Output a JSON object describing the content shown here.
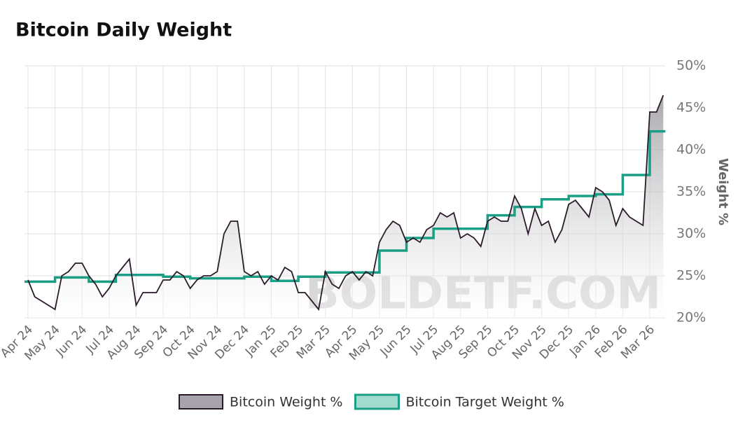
{
  "chart_data": {
    "type": "line",
    "title": "Bitcoin Daily Weight",
    "y_label": "Weight %",
    "watermark": "BOLDETF.COM",
    "categories": [
      "Apr 24",
      null,
      null,
      null,
      "May 24",
      null,
      null,
      null,
      "Jun 24",
      null,
      null,
      null,
      "Jul 24",
      null,
      null,
      null,
      "Aug 24",
      null,
      null,
      null,
      "Sep 24",
      null,
      null,
      null,
      "Oct 24",
      null,
      null,
      null,
      "Nov 24",
      null,
      null,
      null,
      "Dec 24",
      null,
      null,
      null,
      "Jan 25",
      null,
      null,
      null,
      "Feb 25",
      null,
      null,
      null,
      "Mar 25",
      null,
      null,
      null,
      "Apr 25",
      null,
      null,
      null,
      "May 25",
      null,
      null,
      null,
      "Jun 25",
      null,
      null,
      null,
      "Jul 25",
      null,
      null,
      null,
      "Aug 25",
      null,
      null,
      null,
      "Sep 25",
      null,
      null,
      null,
      "Oct 25",
      null,
      null,
      null,
      "Nov 25",
      null,
      null,
      null,
      "Dec 25",
      null,
      null,
      null,
      "Jan 26",
      null,
      null,
      null,
      "Feb 26",
      null,
      null,
      null,
      "Mar 26",
      null,
      null
    ],
    "series": [
      {
        "name": "Bitcoin Weight %",
        "color": "#2b1a2b",
        "fill": "#a8a4ab",
        "values": [
          24.5,
          22.5,
          22,
          21.5,
          21,
          25,
          25.5,
          26.5,
          26.5,
          25,
          24,
          22.5,
          23.5,
          25,
          26,
          27,
          21.5,
          23,
          23,
          23,
          24.5,
          24.5,
          25.5,
          25,
          23.5,
          24.5,
          25,
          25,
          25.5,
          30,
          31.5,
          31.5,
          25.5,
          25,
          25.5,
          24,
          25,
          24.5,
          26,
          25.5,
          23,
          23,
          22,
          21,
          25.5,
          24,
          23.5,
          25,
          25.5,
          24.5,
          25.5,
          25,
          29,
          30.5,
          31.5,
          31,
          29,
          29.5,
          29,
          30.5,
          31,
          32.5,
          32,
          32.5,
          29.5,
          30,
          29.5,
          28.5,
          31.5,
          32,
          31.5,
          31.5,
          34.5,
          33,
          30,
          33,
          31,
          31.5,
          29,
          30.5,
          33.5,
          34,
          33,
          32,
          35.5,
          35,
          34,
          31,
          33,
          32,
          31.5,
          31,
          44.5,
          44.5,
          46.5
        ]
      },
      {
        "name": "Bitcoin Target Weight %",
        "color": "#1a9e85",
        "fill": "#a3dccf",
        "values": [
          24.3,
          24.3,
          24.3,
          24.3,
          24.8,
          24.8,
          24.8,
          24.8,
          24.8,
          24.3,
          24.3,
          24.3,
          24.3,
          25.1,
          25.1,
          25.1,
          25.1,
          25.1,
          25.1,
          25.1,
          24.9,
          24.9,
          24.9,
          24.9,
          24.7,
          24.7,
          24.7,
          24.7,
          24.7,
          24.7,
          24.7,
          24.7,
          24.9,
          24.9,
          24.9,
          24.9,
          24.4,
          24.4,
          24.4,
          24.4,
          24.9,
          24.9,
          24.9,
          24.9,
          25.4,
          25.4,
          25.4,
          25.4,
          25.4,
          25.4,
          25.4,
          25.4,
          28,
          28,
          28,
          28,
          29.5,
          29.5,
          29.5,
          29.5,
          30.6,
          30.6,
          30.6,
          30.6,
          30.6,
          30.6,
          30.6,
          30.6,
          32.2,
          32.2,
          32.2,
          32.2,
          33.2,
          33.2,
          33.2,
          33.2,
          34.1,
          34.1,
          34.1,
          34.1,
          34.5,
          34.5,
          34.5,
          34.5,
          34.7,
          34.7,
          34.7,
          34.7,
          37,
          37,
          37,
          37,
          42.2,
          42.2,
          42.2
        ]
      }
    ],
    "ylim": [
      20,
      50
    ],
    "yticks": [
      {
        "value": 20,
        "label": "20%"
      },
      {
        "value": 25,
        "label": "25%"
      },
      {
        "value": 30,
        "label": "30%"
      },
      {
        "value": 35,
        "label": "35%"
      },
      {
        "value": 40,
        "label": "40%"
      },
      {
        "value": 45,
        "label": "45%"
      },
      {
        "value": 50,
        "label": "50%"
      }
    ],
    "grid": true,
    "legend": "bottom"
  }
}
